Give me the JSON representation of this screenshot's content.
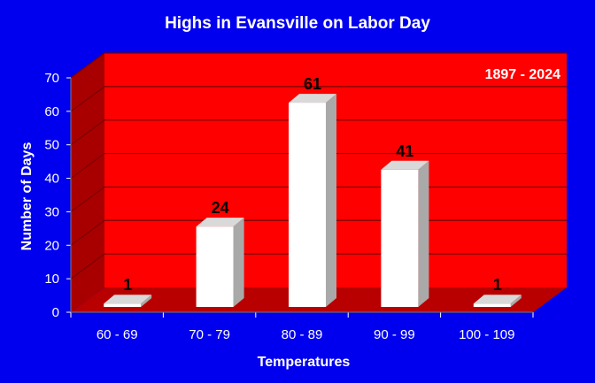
{
  "chart_data": {
    "type": "bar",
    "title": "Highs in Evansville on Labor Day",
    "annotation": "1897 - 2024",
    "xlabel": "Temperatures",
    "ylabel": "Number of Days",
    "categories": [
      "60 - 69",
      "70 - 79",
      "80 - 89",
      "90 - 99",
      "100 - 109"
    ],
    "values": [
      1,
      24,
      61,
      41,
      1
    ],
    "ylim": [
      0,
      70
    ],
    "yticks": [
      0,
      10,
      20,
      30,
      40,
      50,
      60,
      70
    ],
    "grid": true,
    "legend": "none",
    "colors": {
      "background": "#0000ee",
      "plot_back": "#ff0000",
      "plot_side": "#a80000",
      "plot_floor": "#b80000",
      "bar_front": "#ffffff",
      "bar_side": "#a9a9a9",
      "bar_top": "#d9d9d9",
      "grid": "#7a0000",
      "axis_text": "#ffffff",
      "label_text": "#000000"
    }
  }
}
